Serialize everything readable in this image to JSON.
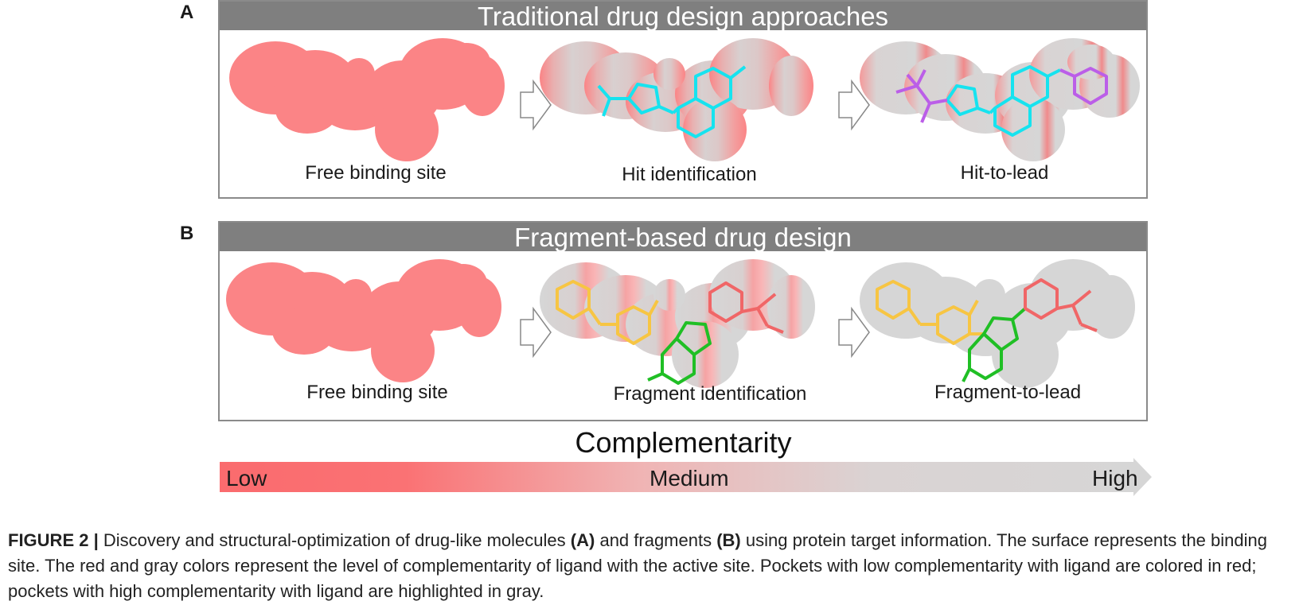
{
  "panel_a": {
    "letter": "A",
    "title": "Traditional drug design approaches",
    "stages": [
      "Free binding site",
      "Hit identification",
      "Hit-to-lead"
    ]
  },
  "panel_b": {
    "letter": "B",
    "title": "Fragment-based drug design",
    "stages": [
      "Free binding site",
      "Fragment identification",
      "Fragment-to-lead"
    ]
  },
  "scale": {
    "title": "Complementarity",
    "low": "Low",
    "medium": "Medium",
    "high": "High"
  },
  "colors": {
    "low_red": "#fa6b6e",
    "pocket_red": "#fb8486",
    "high_gray": "#d6d6d6",
    "ligand_cyan": "#16e3ef",
    "ligand_purple": "#bb5ee8",
    "ligand_yellow": "#f7c543",
    "ligand_green": "#20bf25",
    "ligand_red": "#f06667",
    "header_gray": "#7f7f7f"
  },
  "caption": {
    "label": "FIGURE 2 |",
    "part1": "Discovery and structural-optimization of drug-like molecules",
    "ref_a": "(A)",
    "part2": "and fragments",
    "ref_b": "(B)",
    "part3": "using protein target information. The surface represents the binding site. The red and gray colors represent the level of complementarity of ligand with the active site. Pockets with low complementarity with ligand are colored in red; pockets with high complementarity with ligand are highlighted in gray."
  }
}
